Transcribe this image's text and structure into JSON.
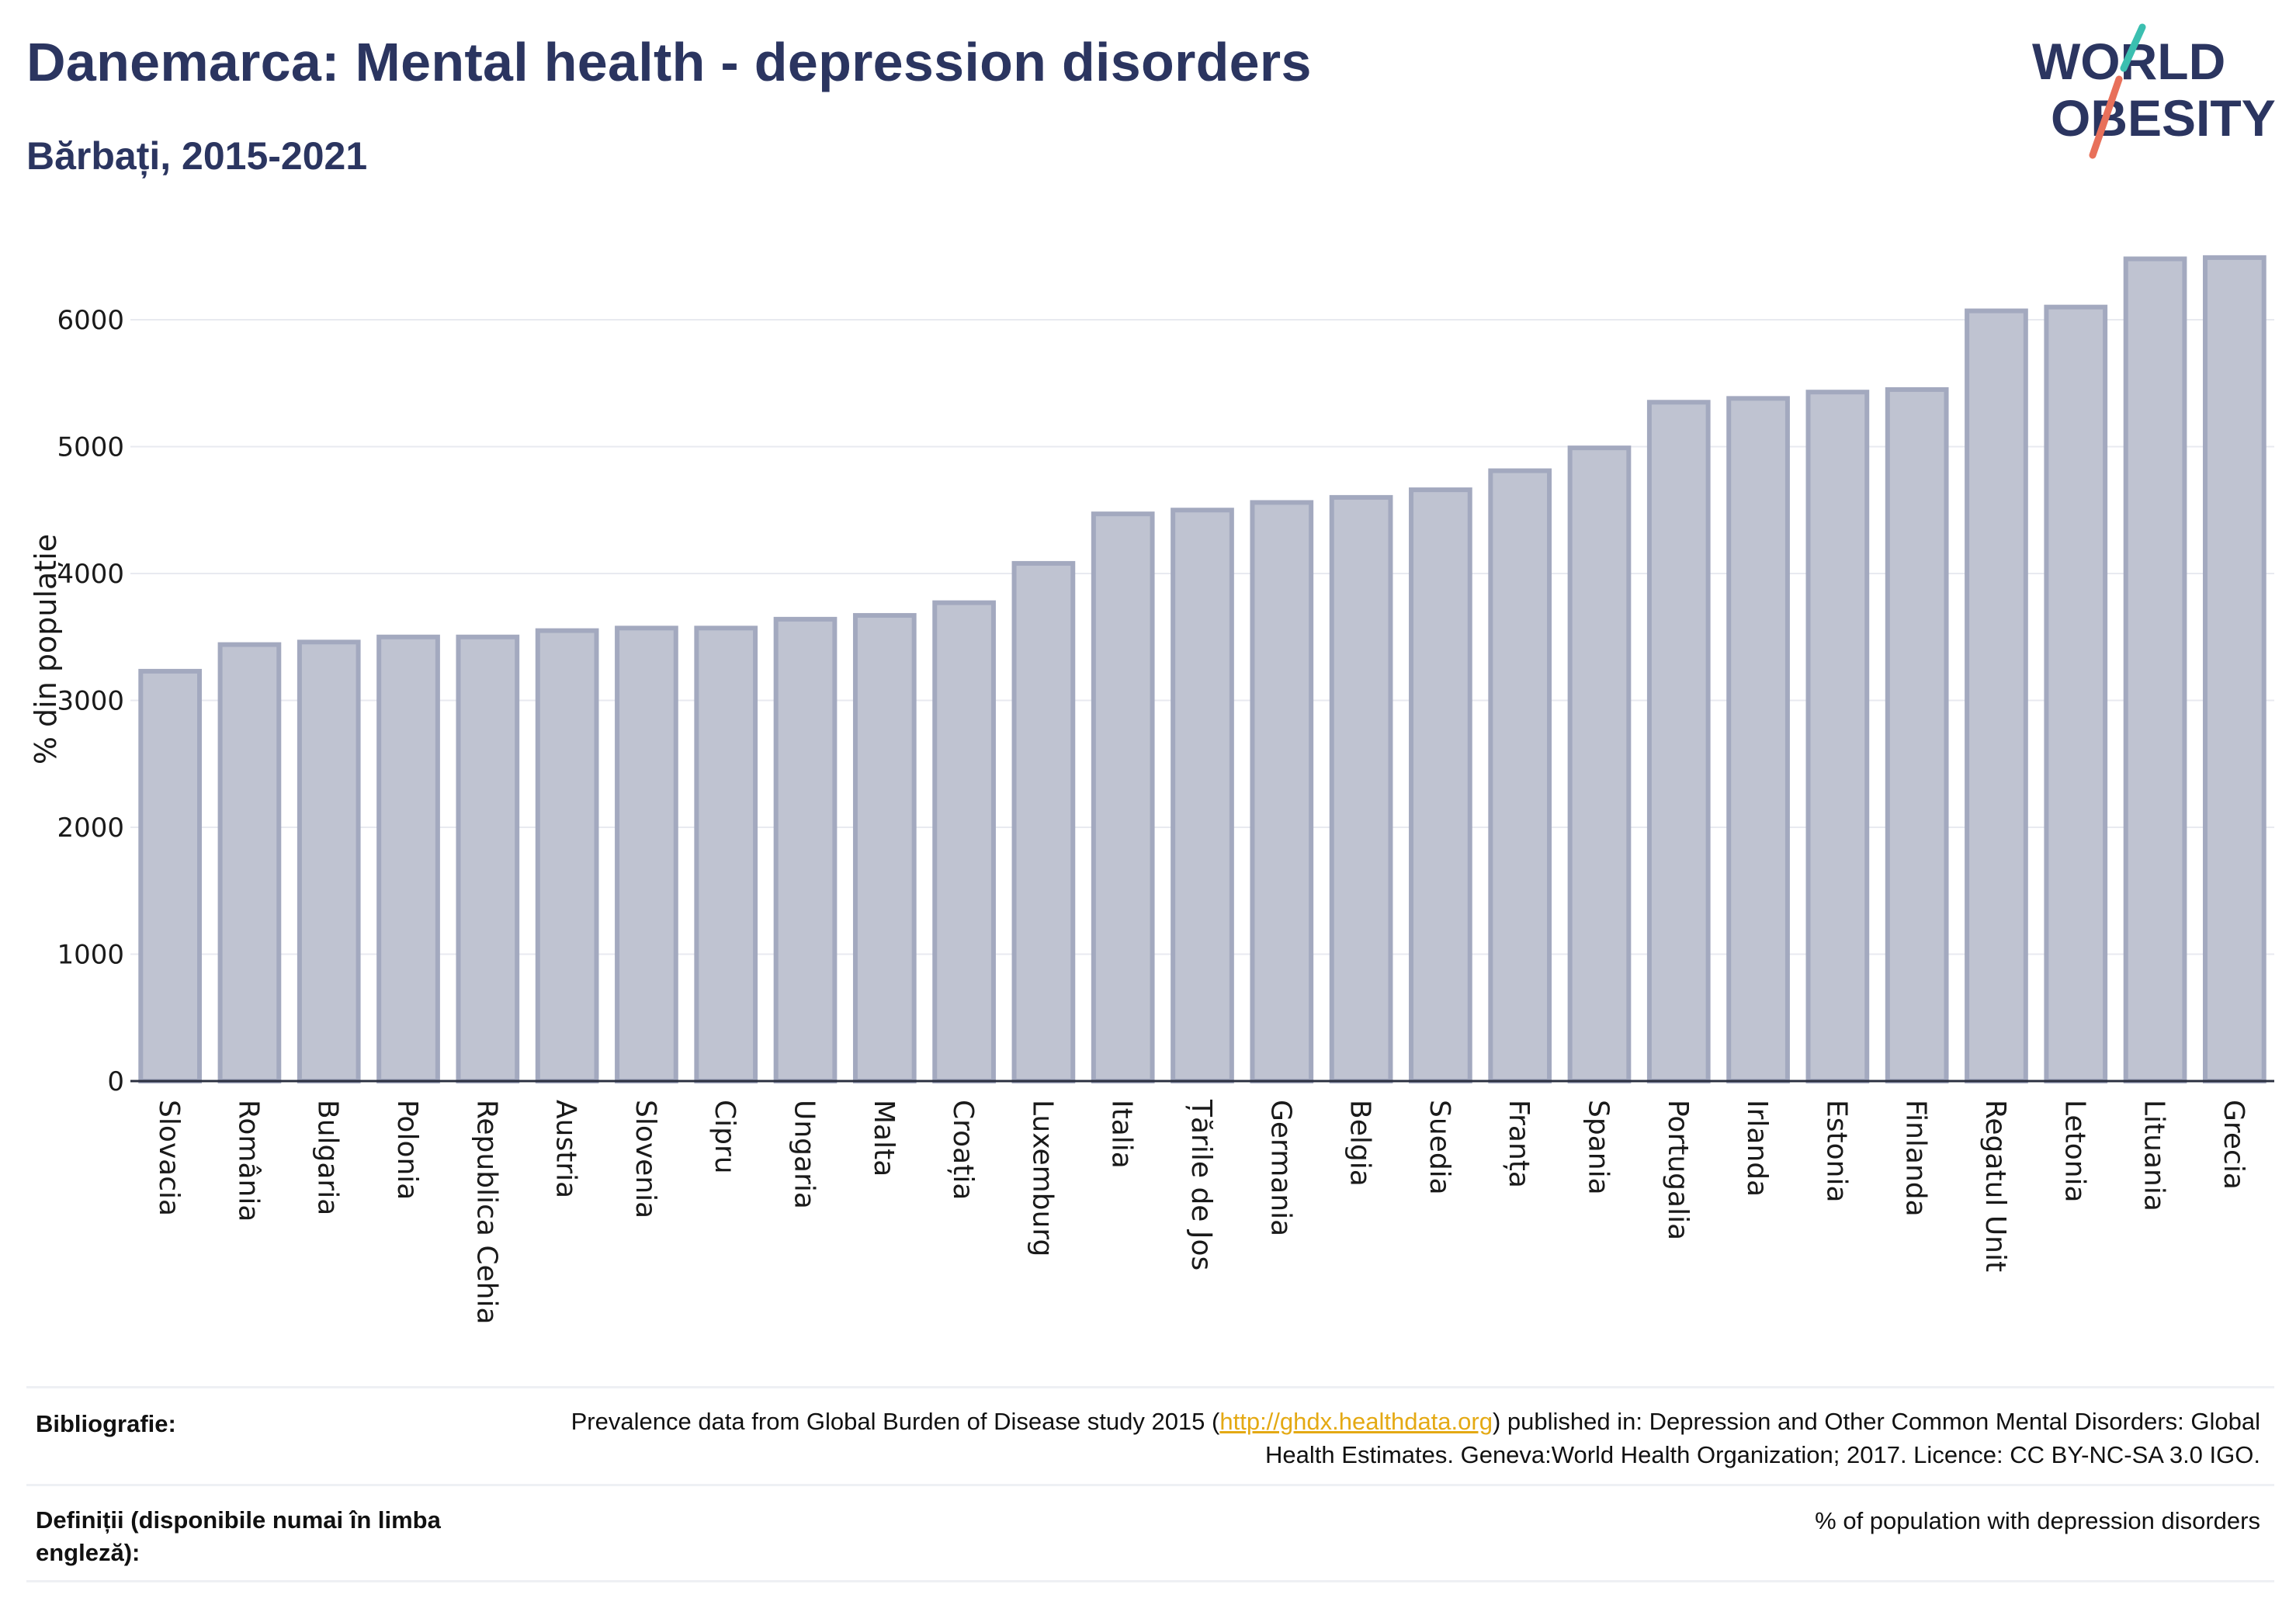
{
  "header": {
    "title": "Danemarca: Mental health - depression disorders",
    "subtitle": "Bărbați, 2015-2021"
  },
  "logo": {
    "line1": "WORLD",
    "line2": "OBESITY",
    "text_color": "#2b3560",
    "slash_colors": [
      "#3bbfb0",
      "#e8705a"
    ]
  },
  "chart_data": {
    "type": "bar",
    "ylabel": "% din populație",
    "ylim": [
      0,
      6500
    ],
    "yticks": [
      0,
      1000,
      2000,
      3000,
      4000,
      5000,
      6000
    ],
    "grid": true,
    "bar_color": "#bfc3d1",
    "bar_edge_color": "#a3a9bf",
    "categories": [
      "Slovacia",
      "România",
      "Bulgaria",
      "Polonia",
      "Republica Cehia",
      "Austria",
      "Slovenia",
      "Cipru",
      "Ungaria",
      "Malta",
      "Croația",
      "Luxemburg",
      "Italia",
      "Țările de Jos",
      "Germania",
      "Belgia",
      "Suedia",
      "Franța",
      "Spania",
      "Portugalia",
      "Irlanda",
      "Estonia",
      "Finlanda",
      "Regatul Unit",
      "Letonia",
      "Lituania",
      "Grecia"
    ],
    "values": [
      3230,
      3440,
      3460,
      3500,
      3500,
      3550,
      3570,
      3570,
      3640,
      3670,
      3770,
      4080,
      4470,
      4500,
      4560,
      4600,
      4660,
      4810,
      4990,
      5350,
      5380,
      5430,
      5450,
      6070,
      6100,
      6480,
      6490
    ]
  },
  "footer": {
    "bibliography_label": "Bibliografie:",
    "bibliography_text_before": "Prevalence data from Global Burden of Disease study 2015 (",
    "bibliography_link": "http://ghdx.healthdata.org",
    "bibliography_text_after": ") published in: Depression and Other Common Mental Disorders: Global Health Estimates. Geneva:World Health Organization; 2017. Licence: CC BY-NC-SA 3.0 IGO.",
    "definitions_label": "Definiții (disponibile numai în limba engleză):",
    "definitions_text": "% of population with depression disorders"
  }
}
